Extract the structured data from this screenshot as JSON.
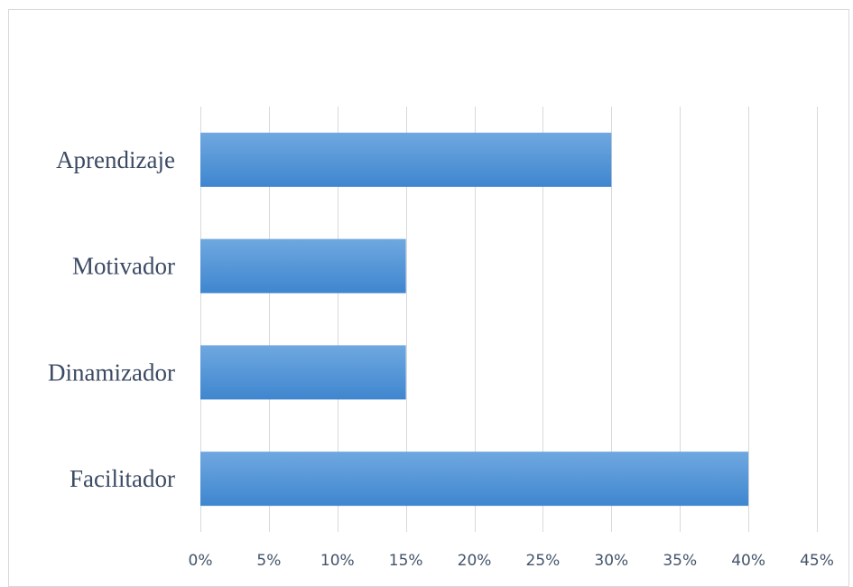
{
  "chart_data": {
    "type": "bar",
    "orientation": "horizontal",
    "categories": [
      "Aprendizaje",
      "Motivador",
      "Dinamizador",
      "Facilitador"
    ],
    "values": [
      0.3,
      0.15,
      0.15,
      0.4
    ],
    "xlim": [
      0,
      0.45
    ],
    "x_ticks": [
      0,
      0.05,
      0.1,
      0.15,
      0.2,
      0.25,
      0.3,
      0.35,
      0.4,
      0.45
    ],
    "x_tick_labels": [
      "0%",
      "5%",
      "10%",
      "15%",
      "20%",
      "25%",
      "30%",
      "35%",
      "40%",
      "45%"
    ],
    "grid": true,
    "legend": "none",
    "bar_color_top": "#6fa8e0",
    "bar_color_bottom": "#3f86cf",
    "grid_color": "#d9d9d9",
    "label_color": "#3b4a63"
  }
}
